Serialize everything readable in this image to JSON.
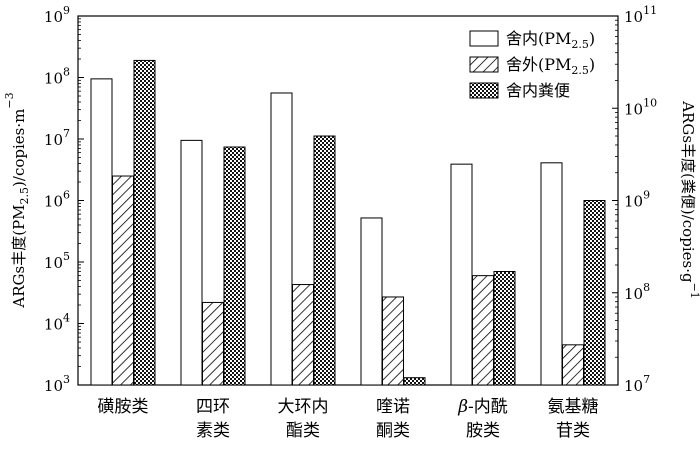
{
  "chart_data": {
    "type": "bar",
    "categories": [
      [
        "磺胺类"
      ],
      [
        "四环",
        "素类"
      ],
      [
        "大环内",
        "酯类"
      ],
      [
        "喹诺",
        "酮类"
      ],
      [
        "β-内酰",
        "胺类"
      ],
      [
        "氨基糖",
        "苷类"
      ]
    ],
    "left_axis": {
      "label": "ARGs丰度(PM2.5)/copies·m−3",
      "label_parts": [
        "ARGs丰度(PM",
        "2.5",
        ")/copies·m",
        "−3"
      ],
      "scale": "log",
      "range": [
        1000,
        1000000000
      ],
      "ticks": [
        {
          "base": "10",
          "exp": "3"
        },
        {
          "base": "10",
          "exp": "4"
        },
        {
          "base": "10",
          "exp": "5"
        },
        {
          "base": "10",
          "exp": "6"
        },
        {
          "base": "10",
          "exp": "7"
        },
        {
          "base": "10",
          "exp": "8"
        },
        {
          "base": "10",
          "exp": "9"
        }
      ]
    },
    "right_axis": {
      "label": "ARGs丰度(粪便)/copies·g−1",
      "label_parts": [
        "ARGs丰度(粪便)/copies·g",
        "−1"
      ],
      "scale": "log",
      "range": [
        10000000,
        100000000000
      ],
      "ticks": [
        {
          "base": "10",
          "exp": "7"
        },
        {
          "base": "10",
          "exp": "8"
        },
        {
          "base": "10",
          "exp": "9"
        },
        {
          "base": "10",
          "exp": "10"
        },
        {
          "base": "10",
          "exp": "11"
        }
      ]
    },
    "series": [
      {
        "name": "舍内(PM2.5)",
        "name_parts": [
          "舍内(PM",
          "2.5",
          ")"
        ],
        "axis": "left",
        "pattern": "white",
        "values": [
          95000000,
          9500000,
          56000000,
          520000,
          3900000,
          4100000
        ]
      },
      {
        "name": "舍外(PM2.5)",
        "name_parts": [
          "舍外(PM",
          "2.5",
          ")"
        ],
        "axis": "left",
        "pattern": "hatch",
        "values": [
          2500000,
          22000,
          43000,
          27000,
          60000,
          4500
        ]
      },
      {
        "name": "舍内粪便",
        "name_parts": [
          "舍内粪便"
        ],
        "axis": "right",
        "pattern": "checker",
        "values": [
          33000000000,
          3800000000,
          5000000000,
          12000000,
          170000000,
          1000000000
        ]
      }
    ],
    "legend_position": "top-right",
    "grid": false
  }
}
